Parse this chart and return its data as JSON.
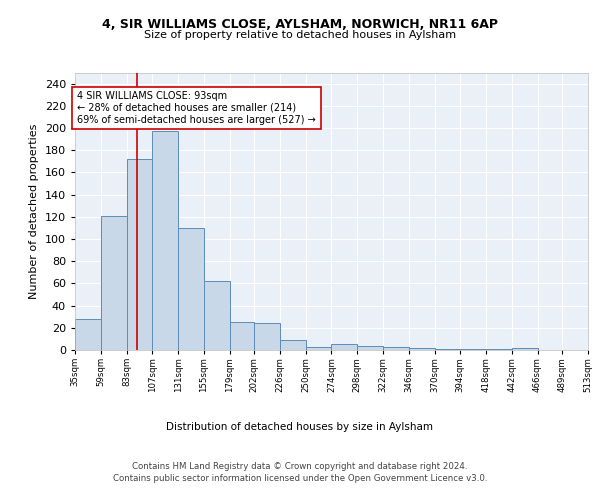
{
  "title1": "4, SIR WILLIAMS CLOSE, AYLSHAM, NORWICH, NR11 6AP",
  "title2": "Size of property relative to detached houses in Aylsham",
  "xlabel": "Distribution of detached houses by size in Aylsham",
  "ylabel": "Number of detached properties",
  "bin_edges": [
    35,
    59,
    83,
    107,
    131,
    155,
    179,
    202,
    226,
    250,
    274,
    298,
    322,
    346,
    370,
    394,
    418,
    442,
    466,
    489,
    513
  ],
  "bar_heights": [
    28,
    121,
    172,
    197,
    110,
    62,
    25,
    24,
    9,
    3,
    5,
    4,
    3,
    2,
    1,
    1,
    1,
    2,
    0,
    0
  ],
  "tick_labels": [
    "35sqm",
    "59sqm",
    "83sqm",
    "107sqm",
    "131sqm",
    "155sqm",
    "179sqm",
    "202sqm",
    "226sqm",
    "250sqm",
    "274sqm",
    "298sqm",
    "322sqm",
    "346sqm",
    "370sqm",
    "394sqm",
    "418sqm",
    "442sqm",
    "466sqm",
    "489sqm",
    "513sqm"
  ],
  "bar_color": "#c8d8e8",
  "bar_edge_color": "#5b8db8",
  "bg_color": "#eaf0f8",
  "grid_color": "#ffffff",
  "property_line_x": 93,
  "property_line_color": "#cc0000",
  "annotation_line1": "4 SIR WILLIAMS CLOSE: 93sqm",
  "annotation_line2": "← 28% of detached houses are smaller (214)",
  "annotation_line3": "69% of semi-detached houses are larger (527) →",
  "annotation_box_color": "#ffffff",
  "annotation_box_edge": "#cc0000",
  "ylim": [
    0,
    250
  ],
  "yticks": [
    0,
    20,
    40,
    60,
    80,
    100,
    120,
    140,
    160,
    180,
    200,
    220,
    240
  ],
  "footer": "Contains HM Land Registry data © Crown copyright and database right 2024.\nContains public sector information licensed under the Open Government Licence v3.0."
}
